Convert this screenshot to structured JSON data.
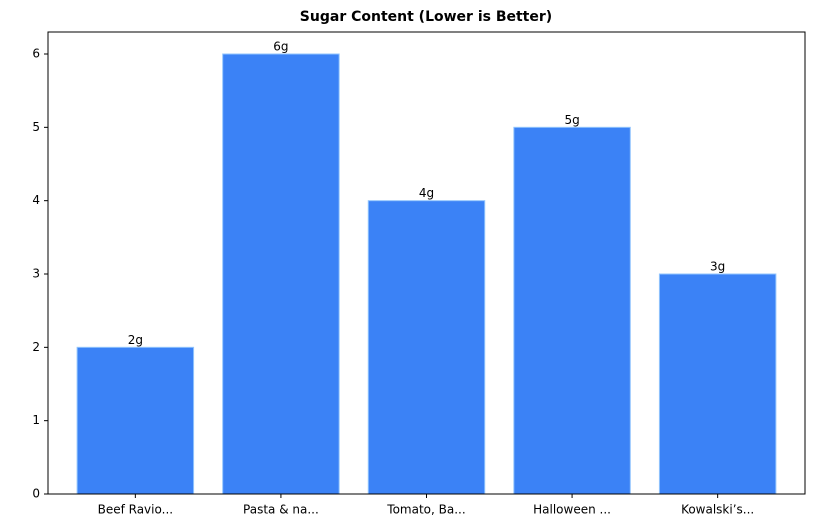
{
  "chart_data": {
    "type": "bar",
    "title": "Sugar Content (Lower is Better)",
    "categories": [
      "Beef Ravio...",
      "Pasta & na...",
      "Tomato, Ba...",
      "Halloween ...",
      "Kowalski’s..."
    ],
    "values": [
      2,
      6,
      4,
      5,
      3
    ],
    "value_labels": [
      "2g",
      "6g",
      "4g",
      "5g",
      "3g"
    ],
    "color": "#3b82f6",
    "ylim": [
      0,
      6.3
    ],
    "yticks": [
      0,
      1,
      2,
      3,
      4,
      5,
      6
    ],
    "grid": false
  }
}
